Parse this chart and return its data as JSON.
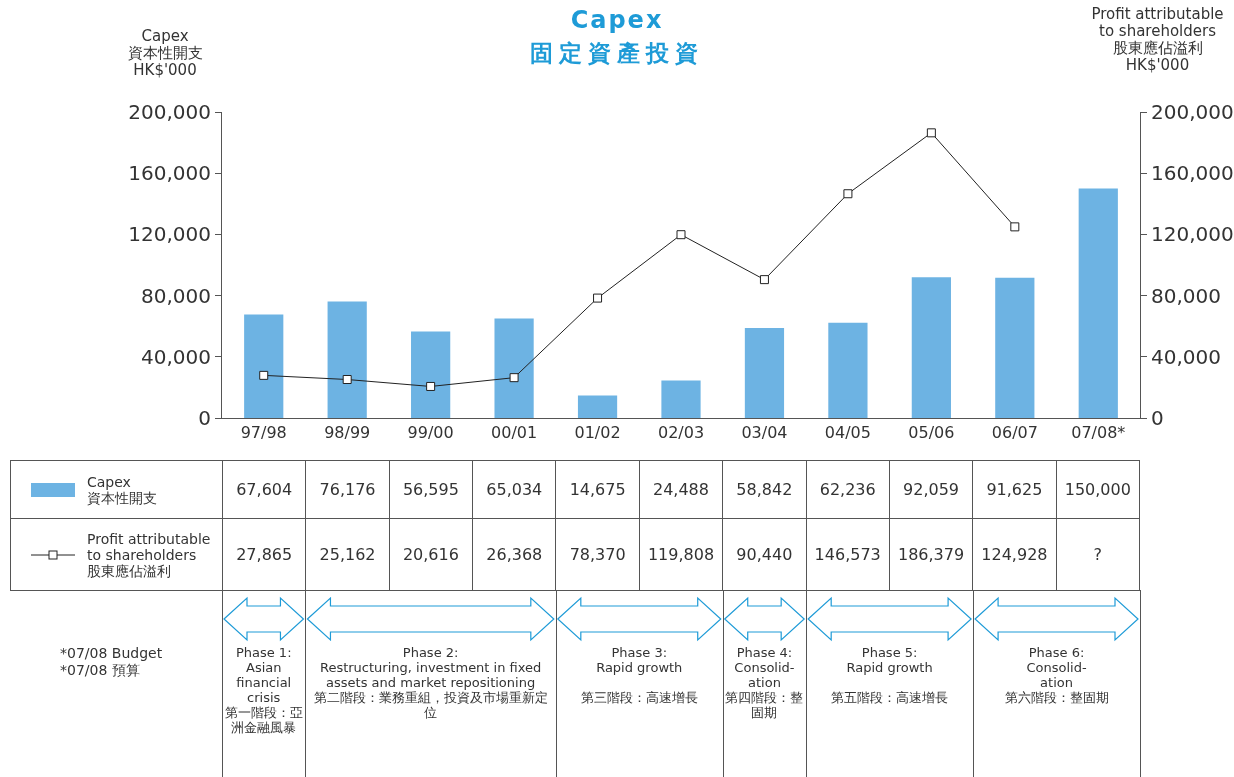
{
  "chart_data": {
    "type": "bar",
    "title": "Capex",
    "subtitle": "固定資產投資",
    "ylabel": "Capex\n資本性開支\nHK$'000",
    "y2label": "Profit attributable\nto shareholders\n股東應佔溢利\nHK$'000",
    "categories": [
      "97/98",
      "98/99",
      "99/00",
      "00/01",
      "01/02",
      "02/03",
      "03/04",
      "04/05",
      "05/06",
      "06/07",
      "07/08*"
    ],
    "series": [
      {
        "name": "Capex\n資本性開支",
        "color": "#6db3e3",
        "values": [
          67604,
          76176,
          56595,
          65034,
          14675,
          24488,
          58842,
          62236,
          92059,
          91625,
          150000
        ],
        "value_labels": [
          "67,604",
          "76,176",
          "56,595",
          "65,034",
          "14,675",
          "24,488",
          "58,842",
          "62,236",
          "92,059",
          "91,625",
          "150,000"
        ]
      },
      {
        "name": "Profit attributable\nto shareholders\n股東應佔溢利",
        "type": "line",
        "axis": "y2",
        "color": "#222222",
        "marker": "square",
        "line_style": "solid",
        "values": [
          27865,
          25162,
          20616,
          26368,
          78370,
          119808,
          90440,
          146573,
          186379,
          124928,
          null
        ],
        "value_labels": [
          "27,865",
          "25,162",
          "20,616",
          "26,368",
          "78,370",
          "119,808",
          "90,440",
          "146,573",
          "186,379",
          "124,928",
          "?"
        ]
      }
    ],
    "ylim": [
      0,
      200000
    ],
    "yticks": [
      0,
      {
        "value": 40000,
        "label": "40,000"
      },
      {
        "value": 80000,
        "label": "80,000"
      },
      {
        "value": 120000,
        "label": "120,000"
      },
      {
        "value": 160000,
        "label": "160,000"
      },
      {
        "value": 200000,
        "label": "200,000"
      }
    ],
    "y2lim": [
      0,
      200000
    ],
    "y2ticks": [
      0,
      {
        "value": 40000,
        "label": "40,000"
      },
      {
        "value": 80000,
        "label": "80,000"
      },
      {
        "value": 120000,
        "label": "120,000"
      },
      {
        "value": 160000,
        "label": "160,000"
      },
      {
        "value": 200000,
        "label": "200,000"
      }
    ],
    "grid": false,
    "legend": "bottom",
    "annotations": [
      "Phase 1:\nAsian financial crisis\n第一階段：亞洲金融風暴",
      "Phase 2:\nRestructuring, investment in fixed assets and market repositioning\n第二階段：業務重組，投資及市場重新定位",
      "Phase 3:\nRapid growth\n\n第三階段：高速增長",
      "Phase 4:\nConsolid-\nation\n第四階段：整固期",
      "Phase 5:\nRapid growth\n\n第五階段：高速增長",
      "Phase 6:\nConsolid-\nation\n第六階段：整固期",
      "*07/08 Budget\n*07/08 預算"
    ]
  }
}
